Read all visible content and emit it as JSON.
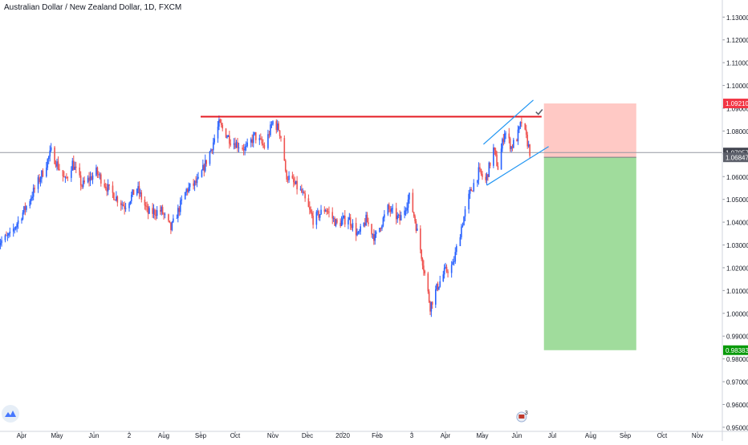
{
  "title": "Australian Dollar / New Zealand Dollar, 1D, FXCM",
  "colors": {
    "up": "#2962ff",
    "down": "#ef5350",
    "resistance": "#e51c23",
    "channel": "#2196f3",
    "stop_zone": "#ffc9c5",
    "target_zone": "#a0dc9c",
    "stop_label": "#f23645",
    "target_label": "#089a09",
    "current_label": "#41444f",
    "entry_label": "#5d606b",
    "grid_line": "#9598a1"
  },
  "price_labels": {
    "stop": "1.09210",
    "current": "1.07057",
    "entry": "1.06847",
    "target": "0.98383"
  },
  "chart_data": {
    "type": "candlestick",
    "title": "Australian Dollar / New Zealand Dollar, 1D, FXCM",
    "ylim": [
      0.9482,
      1.1375
    ],
    "y_ticks": [
      0.95,
      0.96,
      0.97,
      0.98,
      0.99,
      1.0,
      1.01,
      1.02,
      1.03,
      1.04,
      1.05,
      1.06,
      1.07,
      1.08,
      1.09,
      1.1,
      1.11,
      1.12,
      1.13
    ],
    "y_tick_labels": [
      "0.95000",
      "0.96000",
      "0.97000",
      "0.98000",
      "0.99000",
      "1.00000",
      "1.01000",
      "1.02000",
      "1.03000",
      "1.04000",
      "1.05000",
      "1.06000",
      "1.07000",
      "1.08000",
      "1.09000",
      "1.10000",
      "1.11000",
      "1.12000",
      "1.13000"
    ],
    "x_tick_labels": [
      "Apr",
      "May",
      "Jun",
      "2",
      "Aug",
      "Sep",
      "Oct",
      "Nov",
      "Dec",
      "2020",
      "Feb",
      "3",
      "Apr",
      "May",
      "Jun",
      "Jul",
      "Aug",
      "Sep",
      "Oct",
      "Nov"
    ],
    "x_tick_dates": [
      "2019-04-01",
      "2019-05-01",
      "2019-06-01",
      "2019-07-01",
      "2019-08-01",
      "2019-09-01",
      "2019-10-01",
      "2019-11-01",
      "2019-12-01",
      "2020-01-01",
      "2020-02-01",
      "2020-03-01",
      "2020-04-01",
      "2020-05-01",
      "2020-06-01",
      "2020-07-01",
      "2020-08-01",
      "2020-09-01",
      "2020-10-01",
      "2020-11-01"
    ],
    "price_path": [
      [
        "2019-03-12",
        1.031
      ],
      [
        "2019-03-22",
        1.034
      ],
      [
        "2019-04-05",
        1.047
      ],
      [
        "2019-04-19",
        1.062
      ],
      [
        "2019-04-26",
        1.071
      ],
      [
        "2019-05-08",
        1.058
      ],
      [
        "2019-05-14",
        1.066
      ],
      [
        "2019-05-22",
        1.056
      ],
      [
        "2019-06-03",
        1.062
      ],
      [
        "2019-06-14",
        1.054
      ],
      [
        "2019-06-27",
        1.047
      ],
      [
        "2019-07-08",
        1.055
      ],
      [
        "2019-07-18",
        1.044
      ],
      [
        "2019-07-30",
        1.045
      ],
      [
        "2019-08-07",
        1.037
      ],
      [
        "2019-08-20",
        1.054
      ],
      [
        "2019-08-30",
        1.058
      ],
      [
        "2019-09-10",
        1.072
      ],
      [
        "2019-09-17",
        1.083
      ],
      [
        "2019-09-27",
        1.076
      ],
      [
        "2019-10-10",
        1.072
      ],
      [
        "2019-10-17",
        1.078
      ],
      [
        "2019-10-25",
        1.073
      ],
      [
        "2019-11-01",
        1.084
      ],
      [
        "2019-11-06",
        1.081
      ],
      [
        "2019-11-10",
        1.074
      ],
      [
        "2019-11-12",
        1.061
      ],
      [
        "2019-11-26",
        1.053
      ],
      [
        "2019-12-06",
        1.041
      ],
      [
        "2019-12-17",
        1.046
      ],
      [
        "2019-12-27",
        1.039
      ],
      [
        "2020-01-06",
        1.042
      ],
      [
        "2020-01-15",
        1.034
      ],
      [
        "2020-01-22",
        1.041
      ],
      [
        "2020-01-30",
        1.033
      ],
      [
        "2020-02-10",
        1.046
      ],
      [
        "2020-02-20",
        1.041
      ],
      [
        "2020-02-28",
        1.051
      ],
      [
        "2020-03-04",
        1.041
      ],
      [
        "2020-03-11",
        1.023
      ],
      [
        "2020-03-18",
        1.003
      ],
      [
        "2020-03-24",
        1.011
      ],
      [
        "2020-03-31",
        1.018
      ],
      [
        "2020-04-07",
        1.021
      ],
      [
        "2020-04-14",
        1.038
      ],
      [
        "2020-04-21",
        1.053
      ],
      [
        "2020-04-28",
        1.062
      ],
      [
        "2020-05-04",
        1.058
      ],
      [
        "2020-05-11",
        1.072
      ],
      [
        "2020-05-15",
        1.064
      ],
      [
        "2020-05-21",
        1.08
      ],
      [
        "2020-05-27",
        1.073
      ],
      [
        "2020-06-01",
        1.077
      ],
      [
        "2020-06-05",
        1.084
      ],
      [
        "2020-06-10",
        1.075
      ],
      [
        "2020-06-12",
        1.071
      ]
    ],
    "resistance_line": {
      "x": [
        "2019-09-01",
        "2020-06-22"
      ],
      "y": [
        1.0863,
        1.0863
      ]
    },
    "channel": {
      "upper": {
        "x": [
          "2020-05-02",
          "2020-06-15"
        ],
        "y": [
          1.0742,
          1.0936
        ]
      },
      "lower": {
        "x": [
          "2020-05-05",
          "2020-06-28"
        ],
        "y": [
          1.0562,
          1.0732
        ]
      }
    },
    "position": {
      "type": "short",
      "x": [
        "2020-06-24",
        "2020-09-10"
      ],
      "entry": 1.06847,
      "stop": 1.0921,
      "target": 0.98383,
      "current": 1.07057
    }
  }
}
